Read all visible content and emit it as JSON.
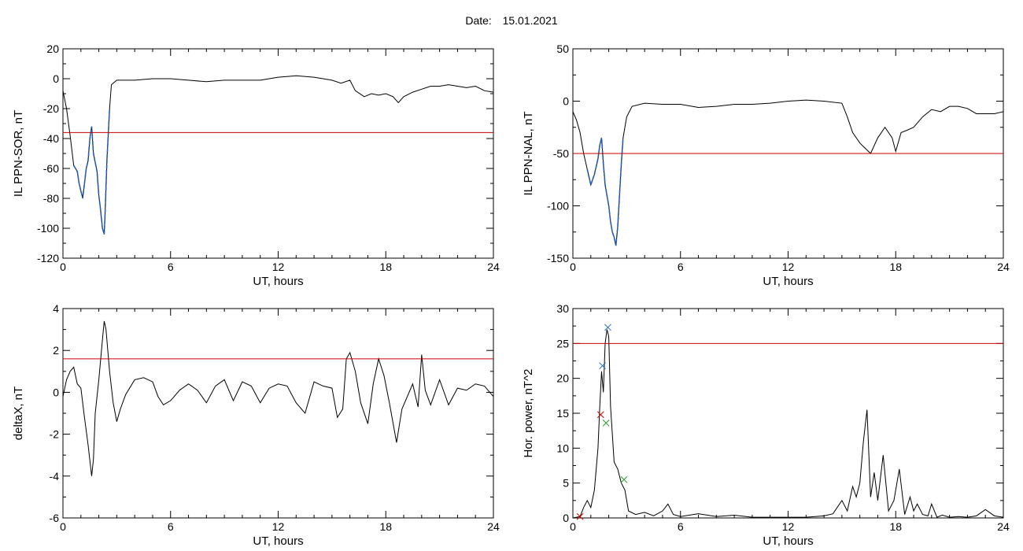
{
  "header": {
    "date_label": "Date:",
    "date_value": "15.01.2021"
  },
  "colors": {
    "line": "#000000",
    "threshold": "#cc0000",
    "highlight": "#1f5fbf",
    "marker_red": "#cc0000",
    "marker_blue": "#1f6fbf",
    "marker_green": "#2a9d2a"
  },
  "chart_data": [
    {
      "id": "p1",
      "type": "line",
      "xlabel": "UT, hours",
      "ylabel": "IL PPN-SOR, nT",
      "xlim": [
        0,
        24
      ],
      "ylim": [
        -120,
        20
      ],
      "xticks": [
        0,
        6,
        12,
        18,
        24
      ],
      "yticks": [
        -120,
        -100,
        -80,
        -60,
        -40,
        -20,
        0,
        20
      ],
      "threshold": -36,
      "highlight_range": [
        0.6,
        2.6
      ],
      "series": [
        {
          "x": [
            0,
            0.2,
            0.4,
            0.6,
            0.7,
            0.8,
            0.9,
            1.0,
            1.1,
            1.2,
            1.3,
            1.4,
            1.5,
            1.6,
            1.7,
            1.8,
            1.9,
            2.0,
            2.1,
            2.2,
            2.3,
            2.35,
            2.45,
            2.6,
            2.7,
            3.0,
            4,
            5,
            6,
            7,
            8,
            9,
            10,
            11,
            12,
            13,
            14,
            15,
            15.5,
            16,
            16.3,
            16.8,
            17.2,
            17.6,
            18,
            18.4,
            18.7,
            19,
            19.5,
            20,
            20.5,
            21,
            21.5,
            22,
            22.5,
            23,
            23.5,
            24
          ],
          "y": [
            -8,
            -20,
            -38,
            -58,
            -60,
            -62,
            -70,
            -75,
            -80,
            -70,
            -60,
            -55,
            -40,
            -32,
            -50,
            -56,
            -62,
            -78,
            -88,
            -100,
            -104,
            -90,
            -55,
            -20,
            -4,
            -1,
            -1,
            0,
            0,
            -1,
            -2,
            -1,
            -1,
            -1,
            1,
            2,
            1,
            -1,
            -3,
            -1,
            -8,
            -12,
            -10,
            -11,
            -10,
            -12,
            -16,
            -12,
            -9,
            -7,
            -5,
            -5,
            -4,
            -5,
            -6,
            -5,
            -8,
            -9
          ]
        }
      ]
    },
    {
      "id": "p2",
      "type": "line",
      "xlabel": "UT, hours",
      "ylabel": "IL PPN-NAL, nT",
      "xlim": [
        0,
        24
      ],
      "ylim": [
        -150,
        50
      ],
      "xticks": [
        0,
        6,
        12,
        18,
        24
      ],
      "yticks": [
        -150,
        -100,
        -50,
        0,
        50
      ],
      "threshold": -50,
      "highlight_range": [
        0.7,
        2.9
      ],
      "series": [
        {
          "x": [
            0,
            0.2,
            0.4,
            0.6,
            0.8,
            1.0,
            1.2,
            1.4,
            1.5,
            1.6,
            1.7,
            1.8,
            2.0,
            2.1,
            2.2,
            2.3,
            2.4,
            2.5,
            2.7,
            2.8,
            3.0,
            3.3,
            4,
            5,
            6,
            7,
            8,
            9,
            10,
            11,
            12,
            13,
            14,
            15,
            15.3,
            15.6,
            16,
            16.3,
            16.6,
            17,
            17.4,
            17.8,
            18,
            18.3,
            18.6,
            19,
            19.5,
            20,
            20.5,
            21,
            21.5,
            22,
            22.5,
            23,
            23.5,
            24
          ],
          "y": [
            -10,
            -18,
            -30,
            -50,
            -65,
            -80,
            -70,
            -55,
            -42,
            -35,
            -60,
            -80,
            -100,
            -115,
            -125,
            -130,
            -138,
            -120,
            -60,
            -35,
            -15,
            -5,
            -2,
            -3,
            -3,
            -6,
            -5,
            -3,
            -3,
            -2,
            0,
            1,
            0,
            -2,
            -15,
            -30,
            -40,
            -45,
            -50,
            -35,
            -25,
            -35,
            -48,
            -30,
            -28,
            -25,
            -15,
            -8,
            -10,
            -5,
            -5,
            -7,
            -12,
            -12,
            -12,
            -10
          ]
        }
      ]
    },
    {
      "id": "p3",
      "type": "line",
      "xlabel": "UT, hours",
      "ylabel": "deltaX, nT",
      "xlim": [
        0,
        24
      ],
      "ylim": [
        -6,
        4
      ],
      "xticks": [
        0,
        6,
        12,
        18,
        24
      ],
      "yticks": [
        -6,
        -4,
        -2,
        0,
        2,
        4
      ],
      "threshold": 1.6,
      "series": [
        {
          "x": [
            0,
            0.2,
            0.4,
            0.6,
            0.8,
            1.0,
            1.2,
            1.4,
            1.6,
            1.7,
            1.8,
            2.0,
            2.2,
            2.3,
            2.4,
            2.6,
            2.8,
            3.0,
            3.2,
            3.5,
            4,
            4.5,
            5,
            5.3,
            5.6,
            6,
            6.5,
            7,
            7.5,
            8,
            8.5,
            9,
            9.5,
            10,
            10.5,
            11,
            11.5,
            12,
            12.5,
            13,
            13.5,
            14,
            14.5,
            15,
            15.3,
            15.6,
            15.8,
            16,
            16.3,
            16.6,
            17,
            17.3,
            17.6,
            17.9,
            18.2,
            18.6,
            18.9,
            19.2,
            19.5,
            19.8,
            20,
            20.2,
            20.5,
            21,
            21.5,
            22,
            22.5,
            23,
            23.5,
            24
          ],
          "y": [
            -0.2,
            0.6,
            1.0,
            1.2,
            0.4,
            0.2,
            -1.2,
            -2.5,
            -4.0,
            -3.2,
            -1.0,
            0.6,
            2.5,
            3.4,
            3.0,
            1.0,
            -0.5,
            -1.4,
            -0.8,
            -0.1,
            0.6,
            0.7,
            0.5,
            -0.2,
            -0.6,
            -0.4,
            0.1,
            0.4,
            0.1,
            -0.5,
            0.3,
            0.6,
            -0.4,
            0.5,
            0.3,
            -0.5,
            0.2,
            0.4,
            0.3,
            -0.5,
            -1.0,
            0.5,
            0.3,
            0.2,
            -1.2,
            -0.8,
            1.6,
            1.9,
            1.0,
            -0.5,
            -1.5,
            0.4,
            1.6,
            0.8,
            -0.5,
            -2.4,
            -0.8,
            -0.2,
            0.4,
            -0.7,
            1.8,
            0.1,
            -0.6,
            0.6,
            -0.6,
            0.2,
            0.1,
            0.4,
            0.3,
            -0.2
          ]
        }
      ]
    },
    {
      "id": "p4",
      "type": "line",
      "xlabel": "UT, hours",
      "ylabel": "Hor. power, nT^2",
      "xlim": [
        0,
        24
      ],
      "ylim": [
        0,
        30
      ],
      "xticks": [
        0,
        6,
        12,
        18,
        24
      ],
      "yticks": [
        0,
        5,
        10,
        15,
        20,
        25,
        30
      ],
      "threshold": 25,
      "markers": [
        {
          "x": 0.4,
          "y": 0.2,
          "color": "red"
        },
        {
          "x": 1.55,
          "y": 14.8,
          "color": "red"
        },
        {
          "x": 1.65,
          "y": 21.8,
          "color": "blue"
        },
        {
          "x": 1.95,
          "y": 27.3,
          "color": "blue"
        },
        {
          "x": 1.85,
          "y": 13.6,
          "color": "green"
        },
        {
          "x": 2.85,
          "y": 5.5,
          "color": "green"
        }
      ],
      "series": [
        {
          "x": [
            0,
            0.4,
            0.6,
            0.8,
            1.0,
            1.2,
            1.4,
            1.5,
            1.6,
            1.7,
            1.8,
            1.9,
            2.0,
            2.1,
            2.2,
            2.3,
            2.5,
            2.7,
            2.9,
            3.1,
            3.5,
            4,
            4.5,
            5,
            5.3,
            5.6,
            6,
            7,
            8,
            9,
            10,
            11,
            12,
            13,
            14,
            14.5,
            15,
            15.3,
            15.6,
            15.8,
            16,
            16.2,
            16.4,
            16.6,
            16.8,
            17,
            17.3,
            17.6,
            17.9,
            18.2,
            18.5,
            18.8,
            19,
            19.2,
            19.5,
            19.8,
            20,
            20.3,
            20.6,
            21,
            21.5,
            22,
            22.5,
            23,
            23.5,
            24
          ],
          "y": [
            0,
            0.2,
            1.5,
            2.5,
            1.5,
            4,
            10,
            16,
            21,
            18,
            25,
            27,
            26,
            16,
            12,
            8,
            7,
            5,
            4,
            1,
            0.5,
            0.8,
            0.3,
            1,
            2,
            0.5,
            0.2,
            0.6,
            0.2,
            0.4,
            0.1,
            0.1,
            0.1,
            0.1,
            0.3,
            0.6,
            2.5,
            1,
            4.5,
            3,
            5,
            11,
            15.5,
            3,
            6.5,
            2.5,
            9,
            1,
            2.5,
            7,
            0.5,
            3,
            1,
            2,
            0.5,
            0.3,
            2,
            0.1,
            0.4,
            0.1,
            0.2,
            0.1,
            0.3,
            1.2,
            0.3,
            0.1
          ]
        }
      ]
    }
  ]
}
